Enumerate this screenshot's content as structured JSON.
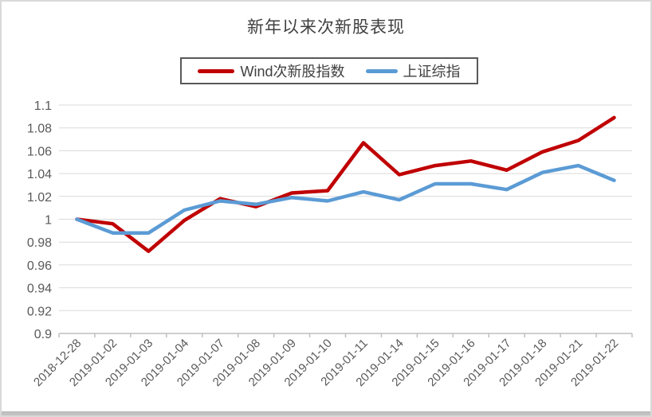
{
  "chart_data": {
    "type": "line",
    "title": "新年以来次新股表现",
    "legend_position": "top",
    "grid": true,
    "categories": [
      "2018-12-28",
      "2019-01-02",
      "2019-01-03",
      "2019-01-04",
      "2019-01-07",
      "2019-01-08",
      "2019-01-09",
      "2019-01-10",
      "2019-01-11",
      "2019-01-14",
      "2019-01-15",
      "2019-01-16",
      "2019-01-17",
      "2019-01-18",
      "2019-01-21",
      "2019-01-22"
    ],
    "series": [
      {
        "name": "Wind次新股指数",
        "color": "#C00000",
        "values": [
          1.0,
          0.996,
          0.972,
          0.999,
          1.018,
          1.011,
          1.023,
          1.025,
          1.067,
          1.039,
          1.047,
          1.051,
          1.043,
          1.059,
          1.069,
          1.089
        ]
      },
      {
        "name": "上证综指",
        "color": "#5B9BD5",
        "values": [
          1.0,
          0.988,
          0.988,
          1.008,
          1.016,
          1.013,
          1.019,
          1.016,
          1.024,
          1.017,
          1.031,
          1.031,
          1.026,
          1.041,
          1.047,
          1.034
        ]
      }
    ],
    "y_axis": {
      "min": 0.9,
      "max": 1.1,
      "step": 0.02,
      "tick_labels": [
        "1.1",
        "1.08",
        "1.06",
        "1.04",
        "1.02",
        "1",
        "0.98",
        "0.96",
        "0.94",
        "0.92",
        "0.9"
      ]
    },
    "colors": {
      "gridline": "#d9d9d9",
      "axis_line": "#bfbfbf",
      "axis_text": "#595959",
      "title_text": "#404040",
      "legend_border": "#595959"
    }
  }
}
